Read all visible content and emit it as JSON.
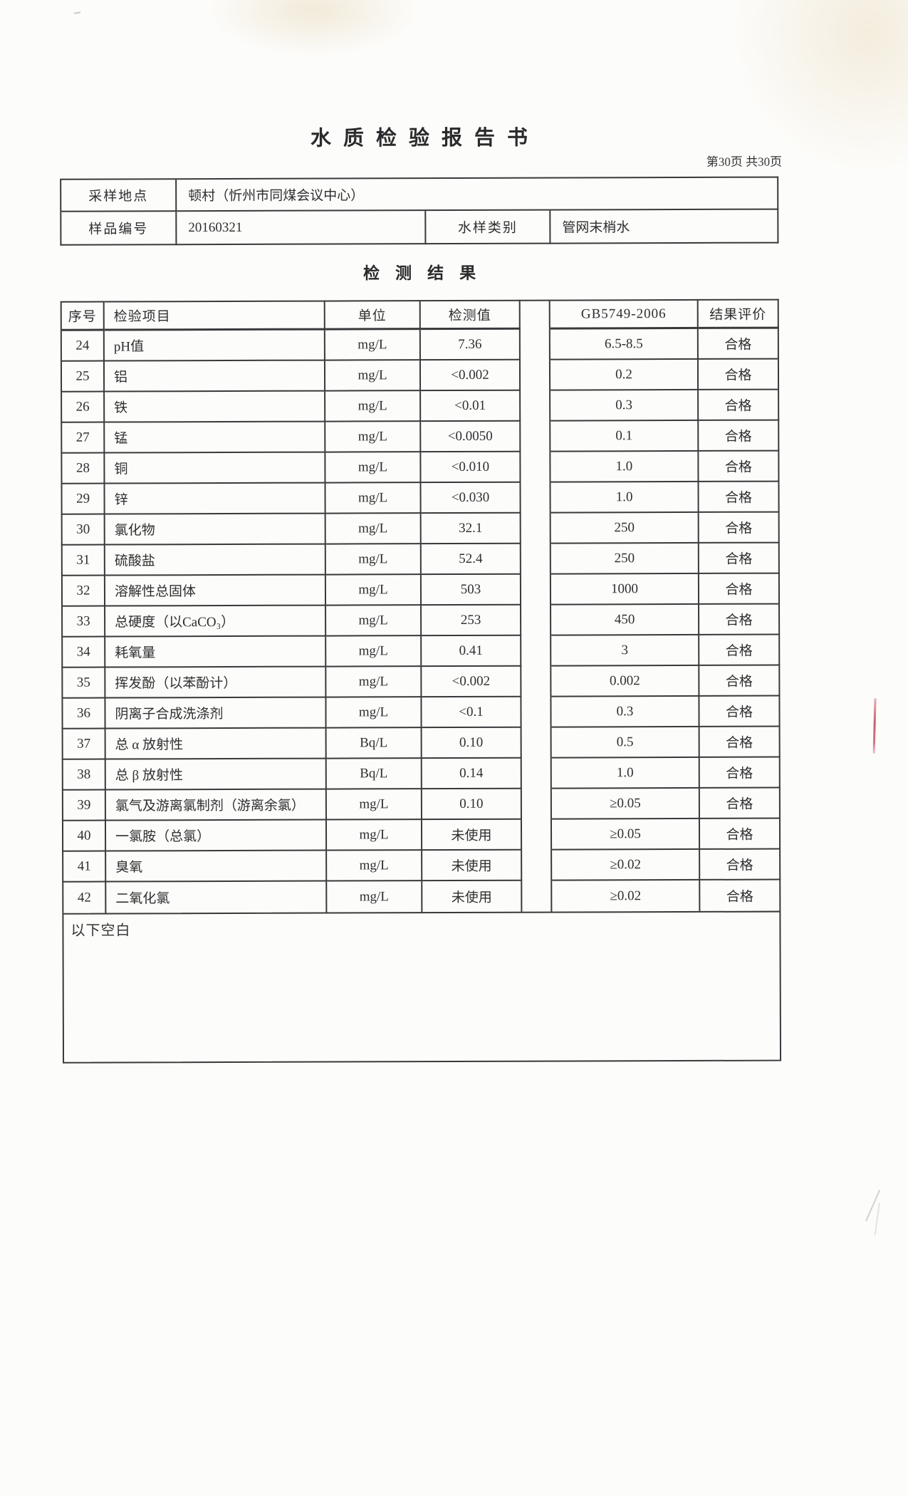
{
  "page": {
    "title": "水质检验报告书",
    "page_indicator": "第30页 共30页"
  },
  "sample_info": {
    "location_label": "采样地点",
    "location_value": "顿村（忻州市同煤会议中心）",
    "sample_no_label": "样品编号",
    "sample_no_value": "20160321",
    "water_type_label": "水样类别",
    "water_type_value": "管网末梢水"
  },
  "section_title": "检测结果",
  "results_table": {
    "headers": [
      "序号",
      "检验项目",
      "单位",
      "检测值",
      "GB5749-2006",
      "结果评价"
    ],
    "rows": [
      [
        "24",
        "pH值",
        "mg/L",
        "7.36",
        "6.5-8.5",
        "合格"
      ],
      [
        "25",
        "铝",
        "mg/L",
        "<0.002",
        "0.2",
        "合格"
      ],
      [
        "26",
        "铁",
        "mg/L",
        "<0.01",
        "0.3",
        "合格"
      ],
      [
        "27",
        "锰",
        "mg/L",
        "<0.0050",
        "0.1",
        "合格"
      ],
      [
        "28",
        "铜",
        "mg/L",
        "<0.010",
        "1.0",
        "合格"
      ],
      [
        "29",
        "锌",
        "mg/L",
        "<0.030",
        "1.0",
        "合格"
      ],
      [
        "30",
        "氯化物",
        "mg/L",
        "32.1",
        "250",
        "合格"
      ],
      [
        "31",
        "硫酸盐",
        "mg/L",
        "52.4",
        "250",
        "合格"
      ],
      [
        "32",
        "溶解性总固体",
        "mg/L",
        "503",
        "1000",
        "合格"
      ],
      [
        "33",
        "总硬度（以CaCO₃）",
        "mg/L",
        "253",
        "450",
        "合格"
      ],
      [
        "34",
        "耗氧量",
        "mg/L",
        "0.41",
        "3",
        "合格"
      ],
      [
        "35",
        "挥发酚（以苯酚计）",
        "mg/L",
        "<0.002",
        "0.002",
        "合格"
      ],
      [
        "36",
        "阴离子合成洗涤剂",
        "mg/L",
        "<0.1",
        "0.3",
        "合格"
      ],
      [
        "37",
        "总 α 放射性",
        "Bq/L",
        "0.10",
        "0.5",
        "合格"
      ],
      [
        "38",
        "总 β 放射性",
        "Bq/L",
        "0.14",
        "1.0",
        "合格"
      ],
      [
        "39",
        "氯气及游离氯制剂（游离余氯）",
        "mg/L",
        "0.10",
        "≥0.05",
        "合格"
      ],
      [
        "40",
        "一氯胺（总氯）",
        "mg/L",
        "未使用",
        "≥0.05",
        "合格"
      ],
      [
        "41",
        "臭氧",
        "mg/L",
        "未使用",
        "≥0.02",
        "合格"
      ],
      [
        "42",
        "二氧化氯",
        "mg/L",
        "未使用",
        "≥0.02",
        "合格"
      ]
    ]
  },
  "footer_note": "以下空白",
  "colors": {
    "ink": "#2e2e30",
    "line": "#39393b",
    "paper": "#fcfcfa",
    "red_mark": "#c43e56"
  }
}
